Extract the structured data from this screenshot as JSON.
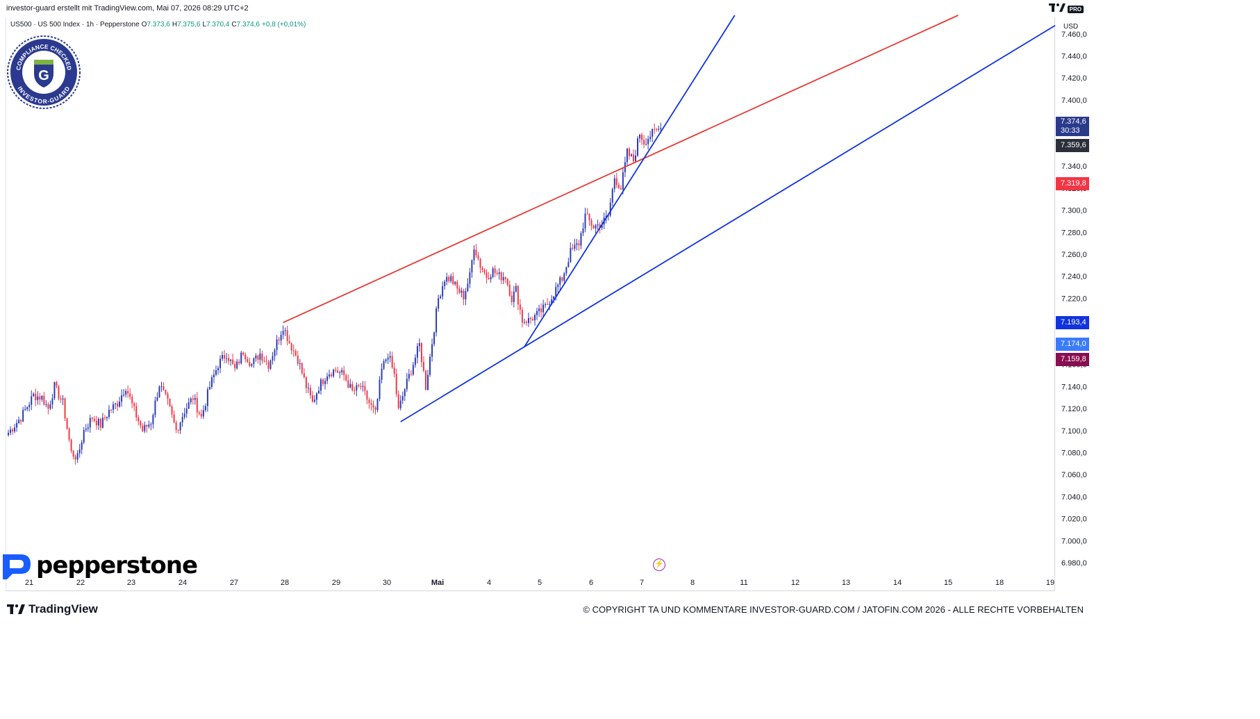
{
  "header": {
    "title": "investor-guard erstellt mit TradingView.com, Mai 07, 2026 08:29 UTC+2",
    "pro_badge": "PRO"
  },
  "legend": {
    "symbol": "US500 · US 500 Index · 1h · Pepperstone",
    "open_label": "O",
    "open": "7.373,6",
    "high_label": "H",
    "high": "7.375,6",
    "low_label": "L",
    "low": "7.370,4",
    "close_label": "C",
    "close": "7.374,6",
    "change": "+0,8 (+0,01%)"
  },
  "axis": {
    "currency": "USD"
  },
  "price_labels": {
    "current_price": "7.374,6",
    "countdown": "30:33",
    "level_1": "7.359,6",
    "level_red": "7.319,8",
    "level_blue": "7.193,4",
    "level_blue_2": "7.174,0",
    "level_maroon": "7.159,8"
  },
  "colors": {
    "up": "#089981",
    "down": "#f23645",
    "candle_up_body": "#2a3bb0",
    "resistance_line": "#e53935",
    "trend_line": "#1032e0",
    "current_pill": "#2a3a8b",
    "level_1_bg": "#2b2f3a",
    "level_red_bg": "#f23645",
    "level_blue_bg": "#1032e0",
    "level_blue2_bg": "#3a7bff",
    "level_maroon_bg": "#880e4f"
  },
  "logos": {
    "badge_text_top": "COMPLIANCE CHECKED",
    "badge_text_bottom": "INVESTOR-GUARD",
    "badge_letter": "G",
    "broker": "pepperstone",
    "tradingview": "TradingView"
  },
  "footer": {
    "copyright": "© COPYRIGHT TA UND KOMMENTARE INVESTOR-GUARD.COM / JATOFIN.COM 2026 - ALLE RECHTE VORBEHALTEN"
  },
  "chart_data": {
    "type": "candlestick",
    "symbol": "US500",
    "timeframe": "1h",
    "ylim": [
      6970,
      7475
    ],
    "yticks": [
      6980,
      7000,
      7020,
      7040,
      7060,
      7080,
      7100,
      7120,
      7140,
      7160,
      7180,
      7200,
      7220,
      7240,
      7260,
      7280,
      7300,
      7320,
      7340,
      7360,
      7380,
      7400,
      7420,
      7440,
      7460
    ],
    "ytick_labels": [
      "6.980,0",
      "7.000,0",
      "7.020,0",
      "7.040,0",
      "7.060,0",
      "7.080,0",
      "7.100,0",
      "7.120,0",
      "7.140,0",
      "7.160,0",
      "7.180,0",
      "7.200,0",
      "7.220,0",
      "7.240,0",
      "7.260,0",
      "7.280,0",
      "7.300,0",
      "7.320,0",
      "7.340,0",
      "7.360,0",
      "7.380,0",
      "7.400,0",
      "7.420,0",
      "7.440,0",
      "7.460,0"
    ],
    "xticks": [
      "21",
      "22",
      "23",
      "24",
      "27",
      "28",
      "29",
      "30",
      "Mai",
      "4",
      "5",
      "6",
      "7",
      "8",
      "11",
      "12",
      "13",
      "14",
      "15",
      "18",
      "19"
    ],
    "anchors": [
      {
        "i": 0,
        "v": 7098
      },
      {
        "i": 6,
        "v": 7112
      },
      {
        "i": 12,
        "v": 7132
      },
      {
        "i": 16,
        "v": 7130
      },
      {
        "i": 19,
        "v": 7120
      },
      {
        "i": 22,
        "v": 7140
      },
      {
        "i": 26,
        "v": 7125
      },
      {
        "i": 30,
        "v": 7080
      },
      {
        "i": 33,
        "v": 7075
      },
      {
        "i": 36,
        "v": 7100
      },
      {
        "i": 40,
        "v": 7112
      },
      {
        "i": 44,
        "v": 7105
      },
      {
        "i": 48,
        "v": 7118
      },
      {
        "i": 52,
        "v": 7125
      },
      {
        "i": 56,
        "v": 7140
      },
      {
        "i": 60,
        "v": 7118
      },
      {
        "i": 64,
        "v": 7100
      },
      {
        "i": 68,
        "v": 7108
      },
      {
        "i": 72,
        "v": 7142
      },
      {
        "i": 76,
        "v": 7125
      },
      {
        "i": 80,
        "v": 7100
      },
      {
        "i": 84,
        "v": 7118
      },
      {
        "i": 88,
        "v": 7130
      },
      {
        "i": 92,
        "v": 7112
      },
      {
        "i": 96,
        "v": 7140
      },
      {
        "i": 100,
        "v": 7160
      },
      {
        "i": 104,
        "v": 7170
      },
      {
        "i": 108,
        "v": 7155
      },
      {
        "i": 112,
        "v": 7172
      },
      {
        "i": 116,
        "v": 7160
      },
      {
        "i": 120,
        "v": 7170
      },
      {
        "i": 124,
        "v": 7160
      },
      {
        "i": 128,
        "v": 7180
      },
      {
        "i": 131,
        "v": 7195
      },
      {
        "i": 134,
        "v": 7180
      },
      {
        "i": 138,
        "v": 7165
      },
      {
        "i": 142,
        "v": 7140
      },
      {
        "i": 145,
        "v": 7125
      },
      {
        "i": 148,
        "v": 7140
      },
      {
        "i": 152,
        "v": 7152
      },
      {
        "i": 156,
        "v": 7155
      },
      {
        "i": 160,
        "v": 7150
      },
      {
        "i": 164,
        "v": 7135
      },
      {
        "i": 168,
        "v": 7140
      },
      {
        "i": 172,
        "v": 7125
      },
      {
        "i": 175,
        "v": 7115
      },
      {
        "i": 178,
        "v": 7155
      },
      {
        "i": 181,
        "v": 7170
      },
      {
        "i": 184,
        "v": 7150
      },
      {
        "i": 186,
        "v": 7118
      },
      {
        "i": 189,
        "v": 7138
      },
      {
        "i": 192,
        "v": 7155
      },
      {
        "i": 196,
        "v": 7178
      },
      {
        "i": 199,
        "v": 7140
      },
      {
        "i": 202,
        "v": 7180
      },
      {
        "i": 205,
        "v": 7220
      },
      {
        "i": 208,
        "v": 7238
      },
      {
        "i": 211,
        "v": 7238
      },
      {
        "i": 214,
        "v": 7228
      },
      {
        "i": 217,
        "v": 7222
      },
      {
        "i": 220,
        "v": 7240
      },
      {
        "i": 222,
        "v": 7268
      },
      {
        "i": 225,
        "v": 7250
      },
      {
        "i": 228,
        "v": 7240
      },
      {
        "i": 231,
        "v": 7245
      },
      {
        "i": 234,
        "v": 7240
      },
      {
        "i": 237,
        "v": 7240
      },
      {
        "i": 240,
        "v": 7220
      },
      {
        "i": 242,
        "v": 7228
      },
      {
        "i": 245,
        "v": 7200
      },
      {
        "i": 248,
        "v": 7200
      },
      {
        "i": 252,
        "v": 7205
      },
      {
        "i": 256,
        "v": 7212
      },
      {
        "i": 260,
        "v": 7225
      },
      {
        "i": 264,
        "v": 7238
      },
      {
        "i": 268,
        "v": 7262
      },
      {
        "i": 272,
        "v": 7270
      },
      {
        "i": 275,
        "v": 7295
      },
      {
        "i": 279,
        "v": 7285
      },
      {
        "i": 283,
        "v": 7288
      },
      {
        "i": 286,
        "v": 7295
      },
      {
        "i": 289,
        "v": 7330
      },
      {
        "i": 292,
        "v": 7320
      },
      {
        "i": 295,
        "v": 7352
      },
      {
        "i": 298,
        "v": 7345
      },
      {
        "i": 301,
        "v": 7370
      },
      {
        "i": 303,
        "v": 7362
      },
      {
        "i": 306,
        "v": 7368
      },
      {
        "i": 309,
        "v": 7372
      },
      {
        "i": 311,
        "v": 7374.6
      }
    ],
    "lines": [
      {
        "name": "resistance",
        "color": "red",
        "from": {
          "i": 131,
          "v": 7198
        },
        "through": {
          "i": 221,
          "v": 7276
        },
        "to_right_edge": true
      },
      {
        "name": "steep_support",
        "color": "blue",
        "from": {
          "i": 246,
          "v": 7176
        },
        "through": {
          "i": 284,
          "v": 7290
        },
        "to_right_edge": true
      },
      {
        "name": "lower_support",
        "color": "blue",
        "from": {
          "i": 187,
          "v": 7108
        },
        "through": {
          "i": 246,
          "v": 7176
        },
        "to_right_edge": true
      }
    ]
  }
}
